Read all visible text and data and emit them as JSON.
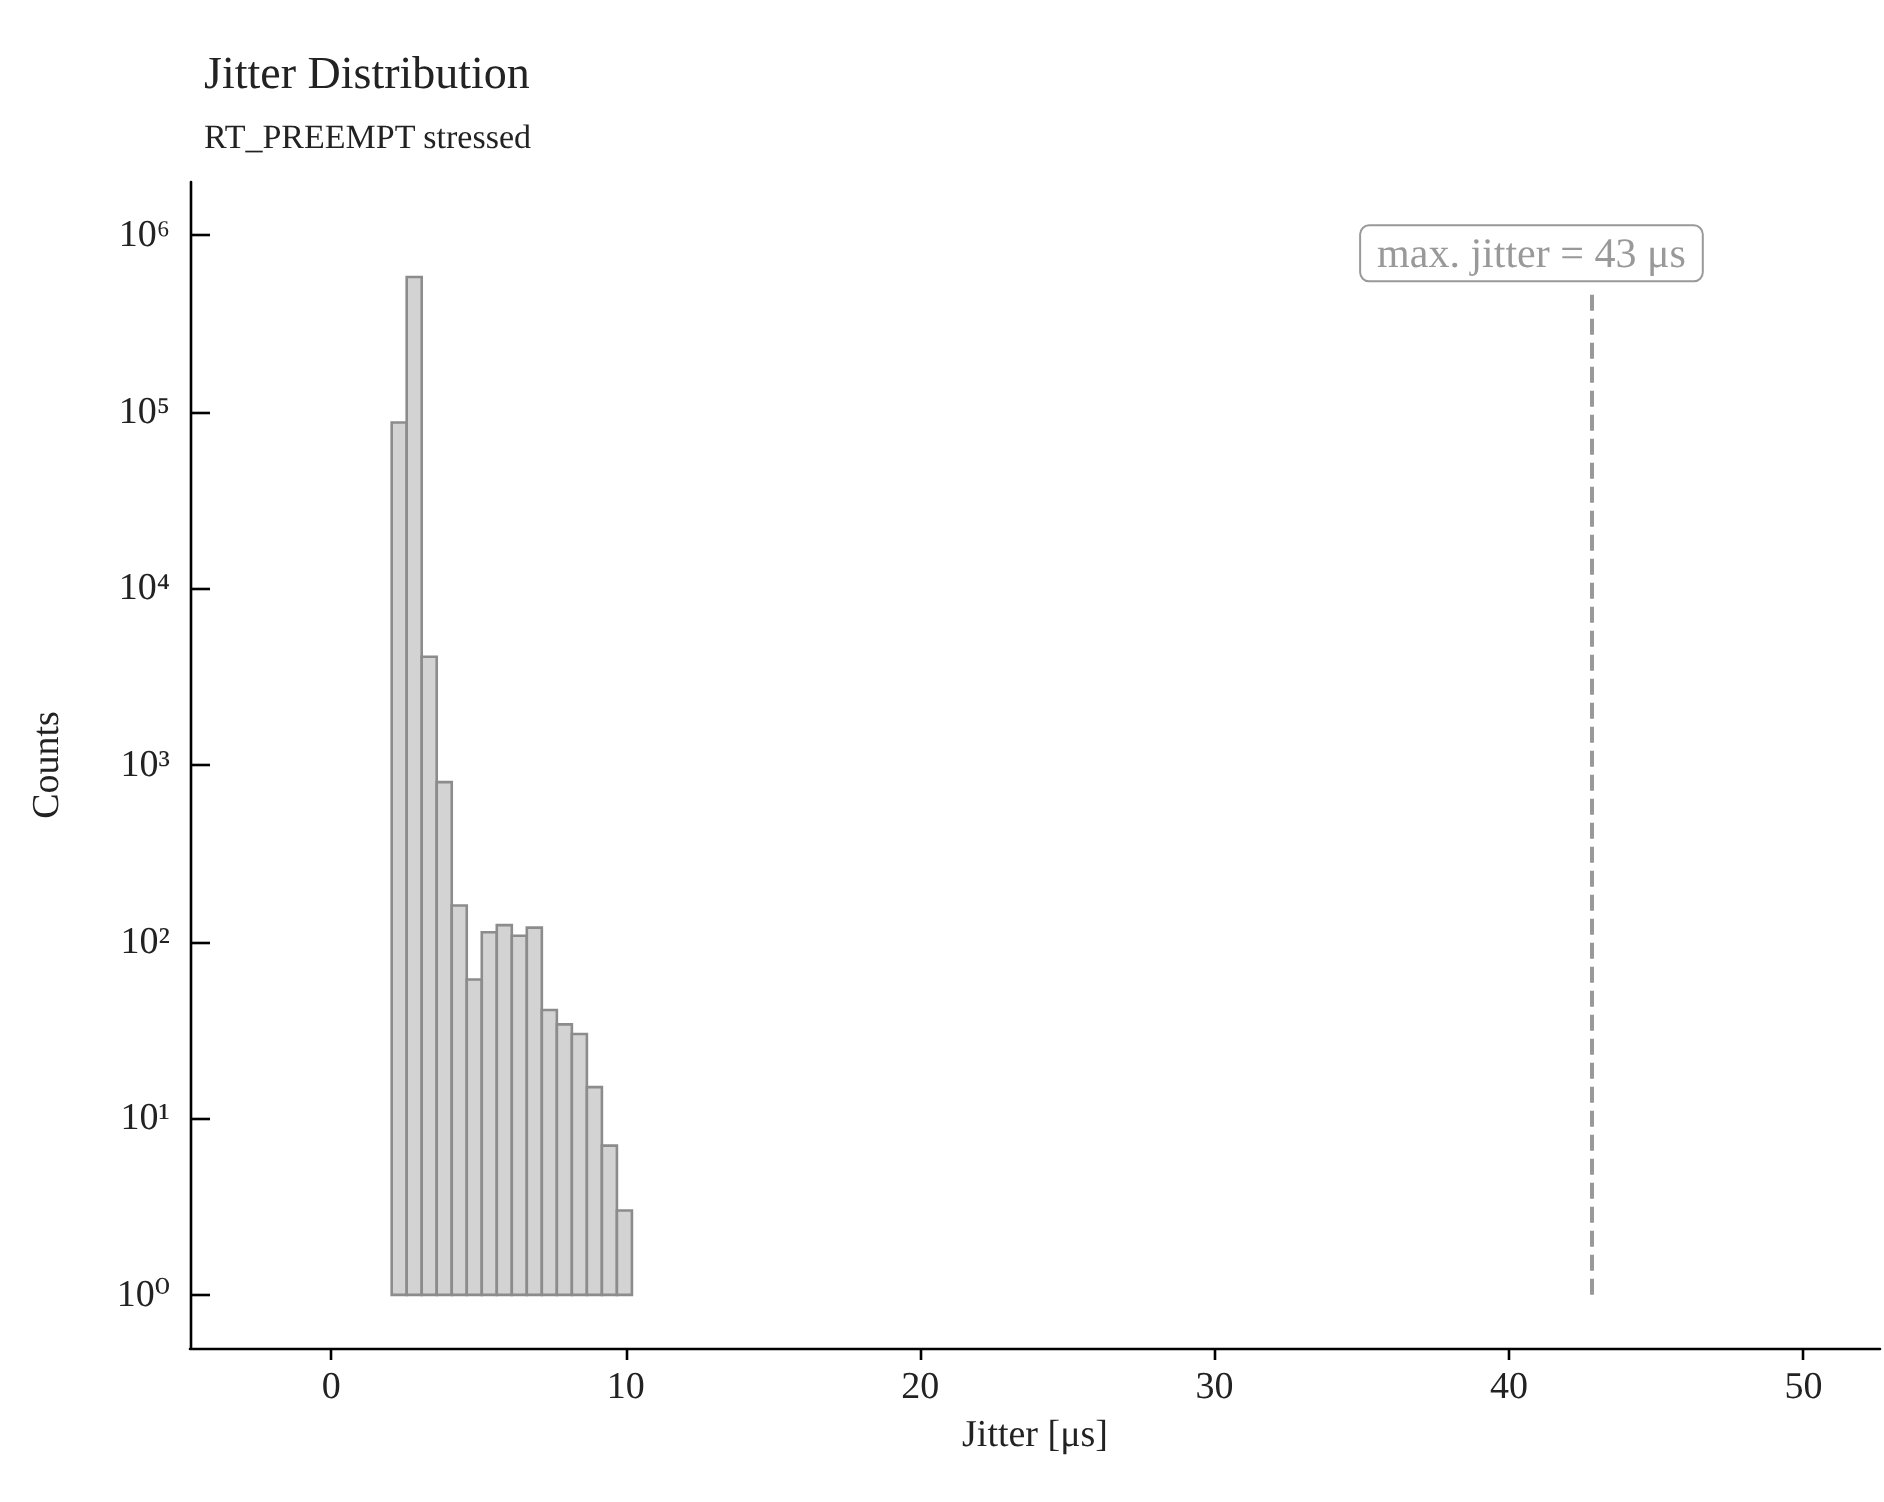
{
  "chart_data": {
    "type": "histogram",
    "title": "Jitter Distribution",
    "subtitle": "RT_PREEMPT stressed",
    "xlabel": "Jitter [μs]",
    "ylabel": "Counts",
    "bins": [
      2.05,
      2.56,
      3.07,
      3.58,
      4.09,
      4.6,
      5.11,
      5.62,
      6.13,
      6.64,
      7.15,
      7.66,
      8.17,
      8.68,
      9.19,
      9.7,
      10.21
    ],
    "values": [
      87000,
      580000,
      4100,
      800,
      160,
      61,
      113,
      124,
      108,
      120,
      41,
      34,
      30,
      15,
      7,
      3
    ],
    "color": "#d3d3d3",
    "xlim": [
      -4.8,
      52.6
    ],
    "xticks": [
      0,
      10,
      20,
      30,
      40,
      50
    ],
    "ylim": [
      0.5,
      2000000
    ],
    "yticks": [
      {
        "value": 1,
        "label": "10⁰"
      },
      {
        "value": 10,
        "label": "10¹"
      },
      {
        "value": 100,
        "label": "10²"
      },
      {
        "value": 1000,
        "label": "10³"
      },
      {
        "value": 10000,
        "label": "10⁴"
      },
      {
        "value": 100000,
        "label": "10⁵"
      },
      {
        "value": 1000000,
        "label": "10⁶"
      }
    ],
    "log": "y",
    "grid": false,
    "ref_lines": [
      {
        "axis": "x",
        "value": 42.8,
        "label": "max. jitter = 43 μs",
        "color": "#999999",
        "line_style": "dashed"
      }
    ]
  }
}
